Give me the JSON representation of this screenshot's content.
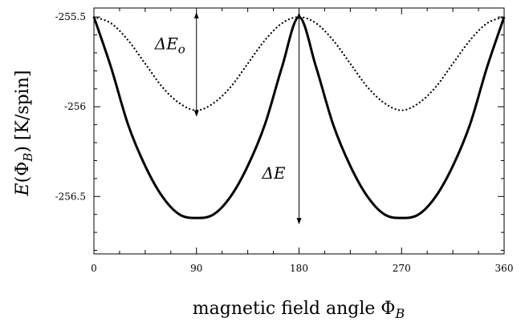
{
  "chart_data": {
    "type": "line",
    "xlabel": "magnetic field angle ΦB",
    "ylabel": "E(ΦB) [K/spin]",
    "xlim": [
      0,
      360
    ],
    "ylim": [
      -256.82,
      -255.45
    ],
    "xticks": [
      0,
      90,
      180,
      270,
      360
    ],
    "xtick_labels": [
      "0",
      "90",
      "180",
      "270",
      "360"
    ],
    "yticks": [
      -255.5,
      -256,
      -256.5
    ],
    "ytick_labels": [
      "-255.5",
      "-256",
      "-256.5"
    ],
    "grid": false,
    "legend": "none",
    "series": [
      {
        "style": "solid",
        "x": [
          0,
          15,
          30,
          45,
          60,
          75,
          90,
          105,
          120,
          135,
          150,
          165,
          180,
          195,
          210,
          225,
          240,
          255,
          270,
          285,
          300,
          315,
          330,
          345,
          360
        ],
        "y": [
          -255.5,
          -255.78,
          -256.1,
          -256.33,
          -256.5,
          -256.6,
          -256.62,
          -256.6,
          -256.5,
          -256.33,
          -256.1,
          -255.78,
          -255.5,
          -255.78,
          -256.1,
          -256.33,
          -256.5,
          -256.6,
          -256.62,
          -256.6,
          -256.5,
          -256.33,
          -256.1,
          -255.78,
          -255.5
        ]
      },
      {
        "style": "dotted",
        "x": [
          0,
          15,
          30,
          45,
          60,
          75,
          90,
          105,
          120,
          135,
          150,
          165,
          180,
          195,
          210,
          225,
          240,
          255,
          270,
          285,
          300,
          315,
          330,
          345,
          360
        ],
        "y": [
          -255.5,
          -255.535,
          -255.63,
          -255.76,
          -255.89,
          -255.98,
          -256.02,
          -255.98,
          -255.89,
          -255.76,
          -255.63,
          -255.535,
          -255.5,
          -255.535,
          -255.63,
          -255.76,
          -255.89,
          -255.98,
          -256.02,
          -255.98,
          -255.89,
          -255.76,
          -255.63,
          -255.535,
          -255.5
        ]
      }
    ],
    "annotations": [
      {
        "text": "ΔEo",
        "kind": "double-arrow",
        "x": 90,
        "y_from": -255.5,
        "y_to": -256.02
      },
      {
        "text": "ΔE",
        "kind": "double-arrow",
        "x": 180,
        "y_from": -255.5,
        "y_to": -256.62
      }
    ]
  }
}
